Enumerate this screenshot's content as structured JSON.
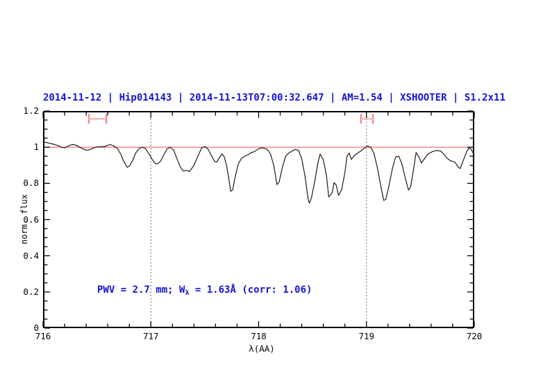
{
  "header": {
    "title": "2014-11-12 | Hip014143 | 2014-11-13T07:00:32.647 | AM=1.54 | XSHOOTER | S1.2x11"
  },
  "annotation": {
    "pre": "PWV = 2.7 mm; W",
    "sub": "λ",
    "post": " = 1.63Å (corr: 1.06)"
  },
  "colors": {
    "title_blue": "#1313d6",
    "annotation_blue": "#1313d6",
    "curve_black": "#1b1b1b",
    "reference_red": "#f28080",
    "marker_red": "#ef8c8c",
    "marker_crossbar_red": "#f7b6b6",
    "axis_black": "#000000",
    "dotted_line_gray": "#3a3a3a",
    "background": "#ffffff"
  },
  "chart_data": {
    "type": "line",
    "title": "2014-11-12 | Hip014143 | 2014-11-13T07:00:32.647 | AM=1.54 | XSHOOTER | S1.2x11",
    "xlabel": "λ(AA)",
    "ylabel": "norm. flux",
    "xlim": [
      716,
      720
    ],
    "ylim": [
      0,
      1.2
    ],
    "xticks": [
      716,
      717,
      718,
      719,
      720
    ],
    "xtick_labels": [
      "716",
      "717",
      "718",
      "719",
      "720"
    ],
    "x_minor_step": 0.2,
    "yticks": [
      0,
      0.2,
      0.4,
      0.6,
      0.8,
      1,
      1.2
    ],
    "ytick_labels": [
      "0",
      "0.2",
      "0.4",
      "0.6",
      "0.8",
      "1",
      "1.2"
    ],
    "y_minor_step": 0.05,
    "grid": false,
    "legend": null,
    "reference_line_y": 1.0,
    "dotted_vlines_x": [
      717,
      719
    ],
    "range_markers": [
      {
        "x_start": 716.425,
        "x_end": 716.586,
        "y": 1.157,
        "half_height": 0.027
      },
      {
        "x_start": 718.95,
        "x_end": 719.06,
        "y": 1.157,
        "half_height": 0.027
      }
    ],
    "series": [
      {
        "name": "normalized spectrum",
        "x": [
          716.0,
          716.03,
          716.06,
          716.1,
          716.14,
          716.17,
          716.2,
          716.22,
          716.25,
          716.28,
          716.31,
          716.34,
          716.38,
          716.41,
          716.44,
          716.47,
          716.5,
          716.54,
          716.58,
          716.62,
          716.66,
          716.69,
          716.72,
          716.75,
          716.78,
          716.8,
          716.83,
          716.86,
          716.89,
          716.92,
          716.95,
          716.98,
          717.01,
          717.04,
          717.06,
          717.09,
          717.12,
          717.15,
          717.18,
          717.21,
          717.24,
          717.27,
          717.3,
          717.33,
          717.36,
          717.4,
          717.44,
          717.47,
          717.5,
          717.53,
          717.56,
          717.59,
          717.61,
          717.64,
          717.66,
          717.68,
          717.7,
          717.72,
          717.74,
          717.76,
          717.78,
          717.81,
          717.84,
          717.87,
          717.9,
          717.93,
          717.96,
          717.99,
          718.02,
          718.05,
          718.08,
          718.11,
          718.14,
          718.17,
          718.19,
          718.22,
          718.25,
          718.28,
          718.31,
          718.34,
          718.37,
          718.4,
          718.43,
          718.46,
          718.47,
          718.49,
          718.52,
          718.55,
          718.57,
          718.6,
          718.63,
          718.65,
          718.68,
          718.7,
          718.72,
          718.74,
          718.77,
          718.8,
          718.82,
          718.84,
          718.86,
          718.89,
          718.92,
          718.95,
          718.98,
          719.01,
          719.04,
          719.07,
          719.1,
          719.13,
          719.16,
          719.18,
          719.21,
          719.24,
          719.27,
          719.3,
          719.33,
          719.36,
          719.39,
          719.41,
          719.44,
          719.46,
          719.49,
          719.51,
          719.54,
          719.57,
          719.61,
          719.65,
          719.69,
          719.72,
          719.75,
          719.78,
          719.82,
          719.85,
          719.87,
          719.9,
          719.93,
          719.95,
          719.97,
          720.0
        ],
        "y": [
          1.03,
          1.026,
          1.022,
          1.016,
          1.008,
          1.0,
          0.996,
          1.002,
          1.011,
          1.015,
          1.01,
          1.0,
          0.988,
          0.983,
          0.988,
          0.996,
          1.002,
          1.002,
          1.005,
          1.015,
          1.006,
          0.993,
          0.962,
          0.92,
          0.889,
          0.895,
          0.925,
          0.968,
          0.992,
          1.0,
          0.993,
          0.965,
          0.935,
          0.91,
          0.907,
          0.922,
          0.958,
          0.99,
          1.0,
          0.985,
          0.94,
          0.895,
          0.868,
          0.872,
          0.866,
          0.9,
          0.955,
          0.995,
          1.004,
          0.99,
          0.955,
          0.922,
          0.917,
          0.945,
          0.963,
          0.948,
          0.905,
          0.84,
          0.756,
          0.765,
          0.83,
          0.905,
          0.938,
          0.95,
          0.958,
          0.97,
          0.975,
          0.988,
          0.996,
          0.995,
          0.988,
          0.962,
          0.9,
          0.793,
          0.808,
          0.888,
          0.95,
          0.968,
          0.978,
          0.988,
          0.982,
          0.935,
          0.84,
          0.71,
          0.691,
          0.72,
          0.81,
          0.915,
          0.962,
          0.93,
          0.84,
          0.725,
          0.745,
          0.804,
          0.79,
          0.734,
          0.765,
          0.86,
          0.95,
          0.968,
          0.932,
          0.955,
          0.968,
          0.98,
          0.995,
          1.006,
          1.0,
          0.965,
          0.89,
          0.795,
          0.706,
          0.712,
          0.79,
          0.88,
          0.945,
          0.95,
          0.905,
          0.83,
          0.763,
          0.782,
          0.89,
          0.97,
          0.942,
          0.913,
          0.938,
          0.962,
          0.975,
          0.982,
          0.978,
          0.96,
          0.938,
          0.925,
          0.918,
          0.89,
          0.882,
          0.93,
          0.975,
          0.995,
          0.99,
          0.955
        ]
      }
    ]
  }
}
